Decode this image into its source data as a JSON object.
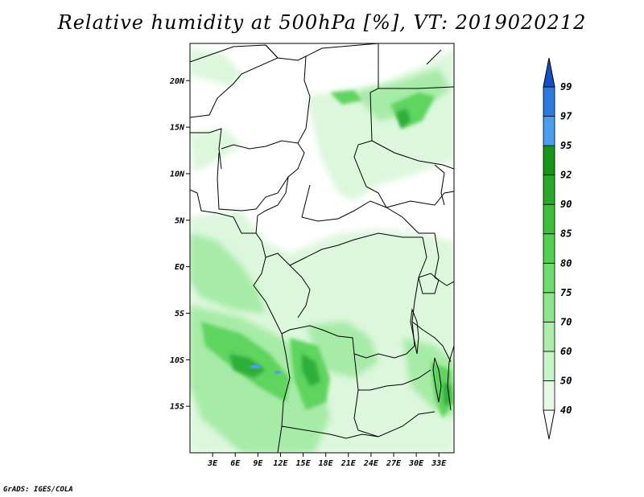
{
  "title": "Relative humidity at 500hPa [%], VT: 2019020212",
  "credit": "GrADS: IGES/COLA",
  "map": {
    "lon_range": [
      0,
      35
    ],
    "lat_range": [
      -20,
      24
    ],
    "lon_ticks": [
      {
        "value": 3,
        "label": "3E"
      },
      {
        "value": 6,
        "label": "6E"
      },
      {
        "value": 9,
        "label": "9E"
      },
      {
        "value": 12,
        "label": "12E"
      },
      {
        "value": 15,
        "label": "15E"
      },
      {
        "value": 18,
        "label": "18E"
      },
      {
        "value": 21,
        "label": "21E"
      },
      {
        "value": 24,
        "label": "24E"
      },
      {
        "value": 27,
        "label": "27E"
      },
      {
        "value": 30,
        "label": "30E"
      },
      {
        "value": 33,
        "label": "33E"
      }
    ],
    "lat_ticks": [
      {
        "value": 20,
        "label": "20N"
      },
      {
        "value": 15,
        "label": "15N"
      },
      {
        "value": 10,
        "label": "10N"
      },
      {
        "value": 5,
        "label": "5N"
      },
      {
        "value": 0,
        "label": "EQ"
      },
      {
        "value": -5,
        "label": "5S"
      },
      {
        "value": -10,
        "label": "10S"
      },
      {
        "value": -15,
        "label": "15S"
      }
    ]
  },
  "colorbar": {
    "levels": [
      "40",
      "50",
      "60",
      "70",
      "75",
      "80",
      "85",
      "90",
      "92",
      "95",
      "97",
      "99"
    ],
    "colors": [
      "#e6fae6",
      "#c8f5c8",
      "#aaeeaa",
      "#8ce68c",
      "#6edd6e",
      "#50d250",
      "#3cc03c",
      "#28aa28",
      "#149614",
      "#4a9ef0",
      "#2a7ae0",
      "#1450c8"
    ],
    "below_color": "#ffffff",
    "above_color": "#1450c8"
  },
  "colors": {
    "boundary": "#000000",
    "field_light": "#dcf7dc",
    "field_mid": "#a6eba6",
    "field_strong": "#5ed45e",
    "field_core": "#2fae3a"
  }
}
